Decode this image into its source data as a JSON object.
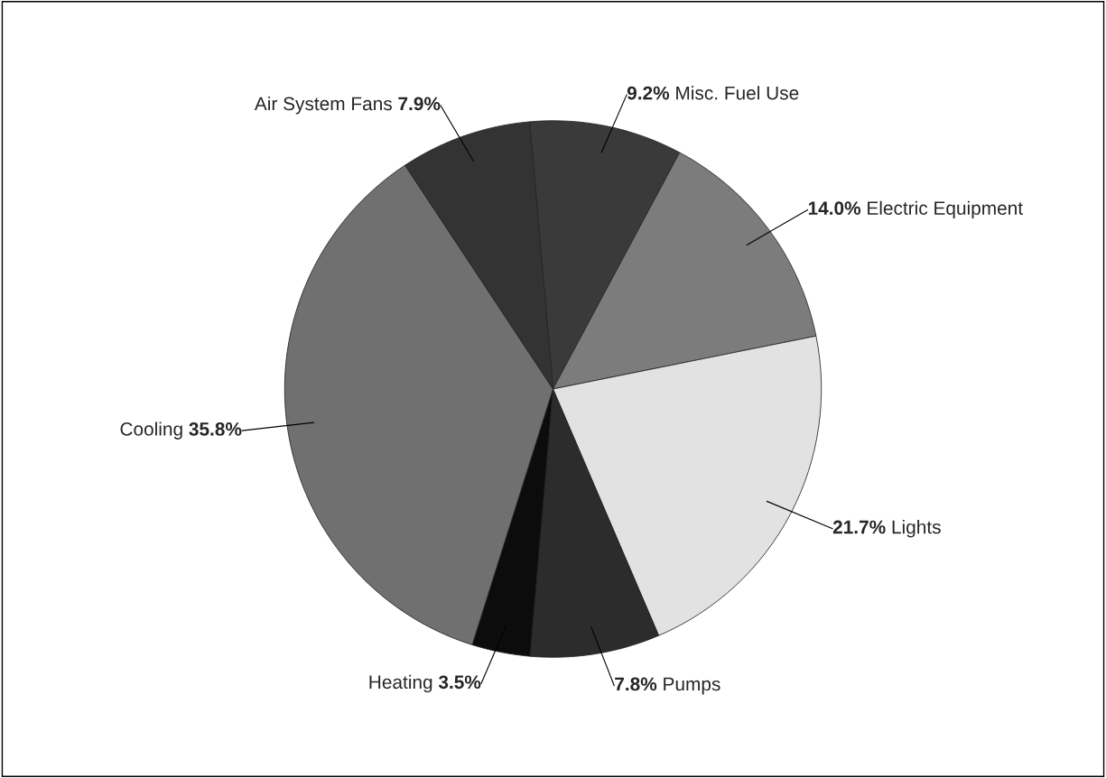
{
  "chart_data": {
    "type": "pie",
    "categories": [
      "Misc. Fuel Use",
      "Electric Equipment",
      "Lights",
      "Pumps",
      "Heating",
      "Cooling",
      "Air System Fans"
    ],
    "values": [
      9.2,
      14.0,
      21.7,
      7.8,
      3.5,
      35.8,
      7.9
    ],
    "value_labels": [
      "9.2%",
      "14.0%",
      "21.7%",
      "7.8%",
      "3.5%",
      "35.8%",
      "7.9%"
    ],
    "colors": [
      "#3a3a3a",
      "#7c7c7c",
      "#e2e2e2",
      "#2c2c2c",
      "#0c0c0c",
      "#707070",
      "#333333"
    ],
    "legend": false
  }
}
